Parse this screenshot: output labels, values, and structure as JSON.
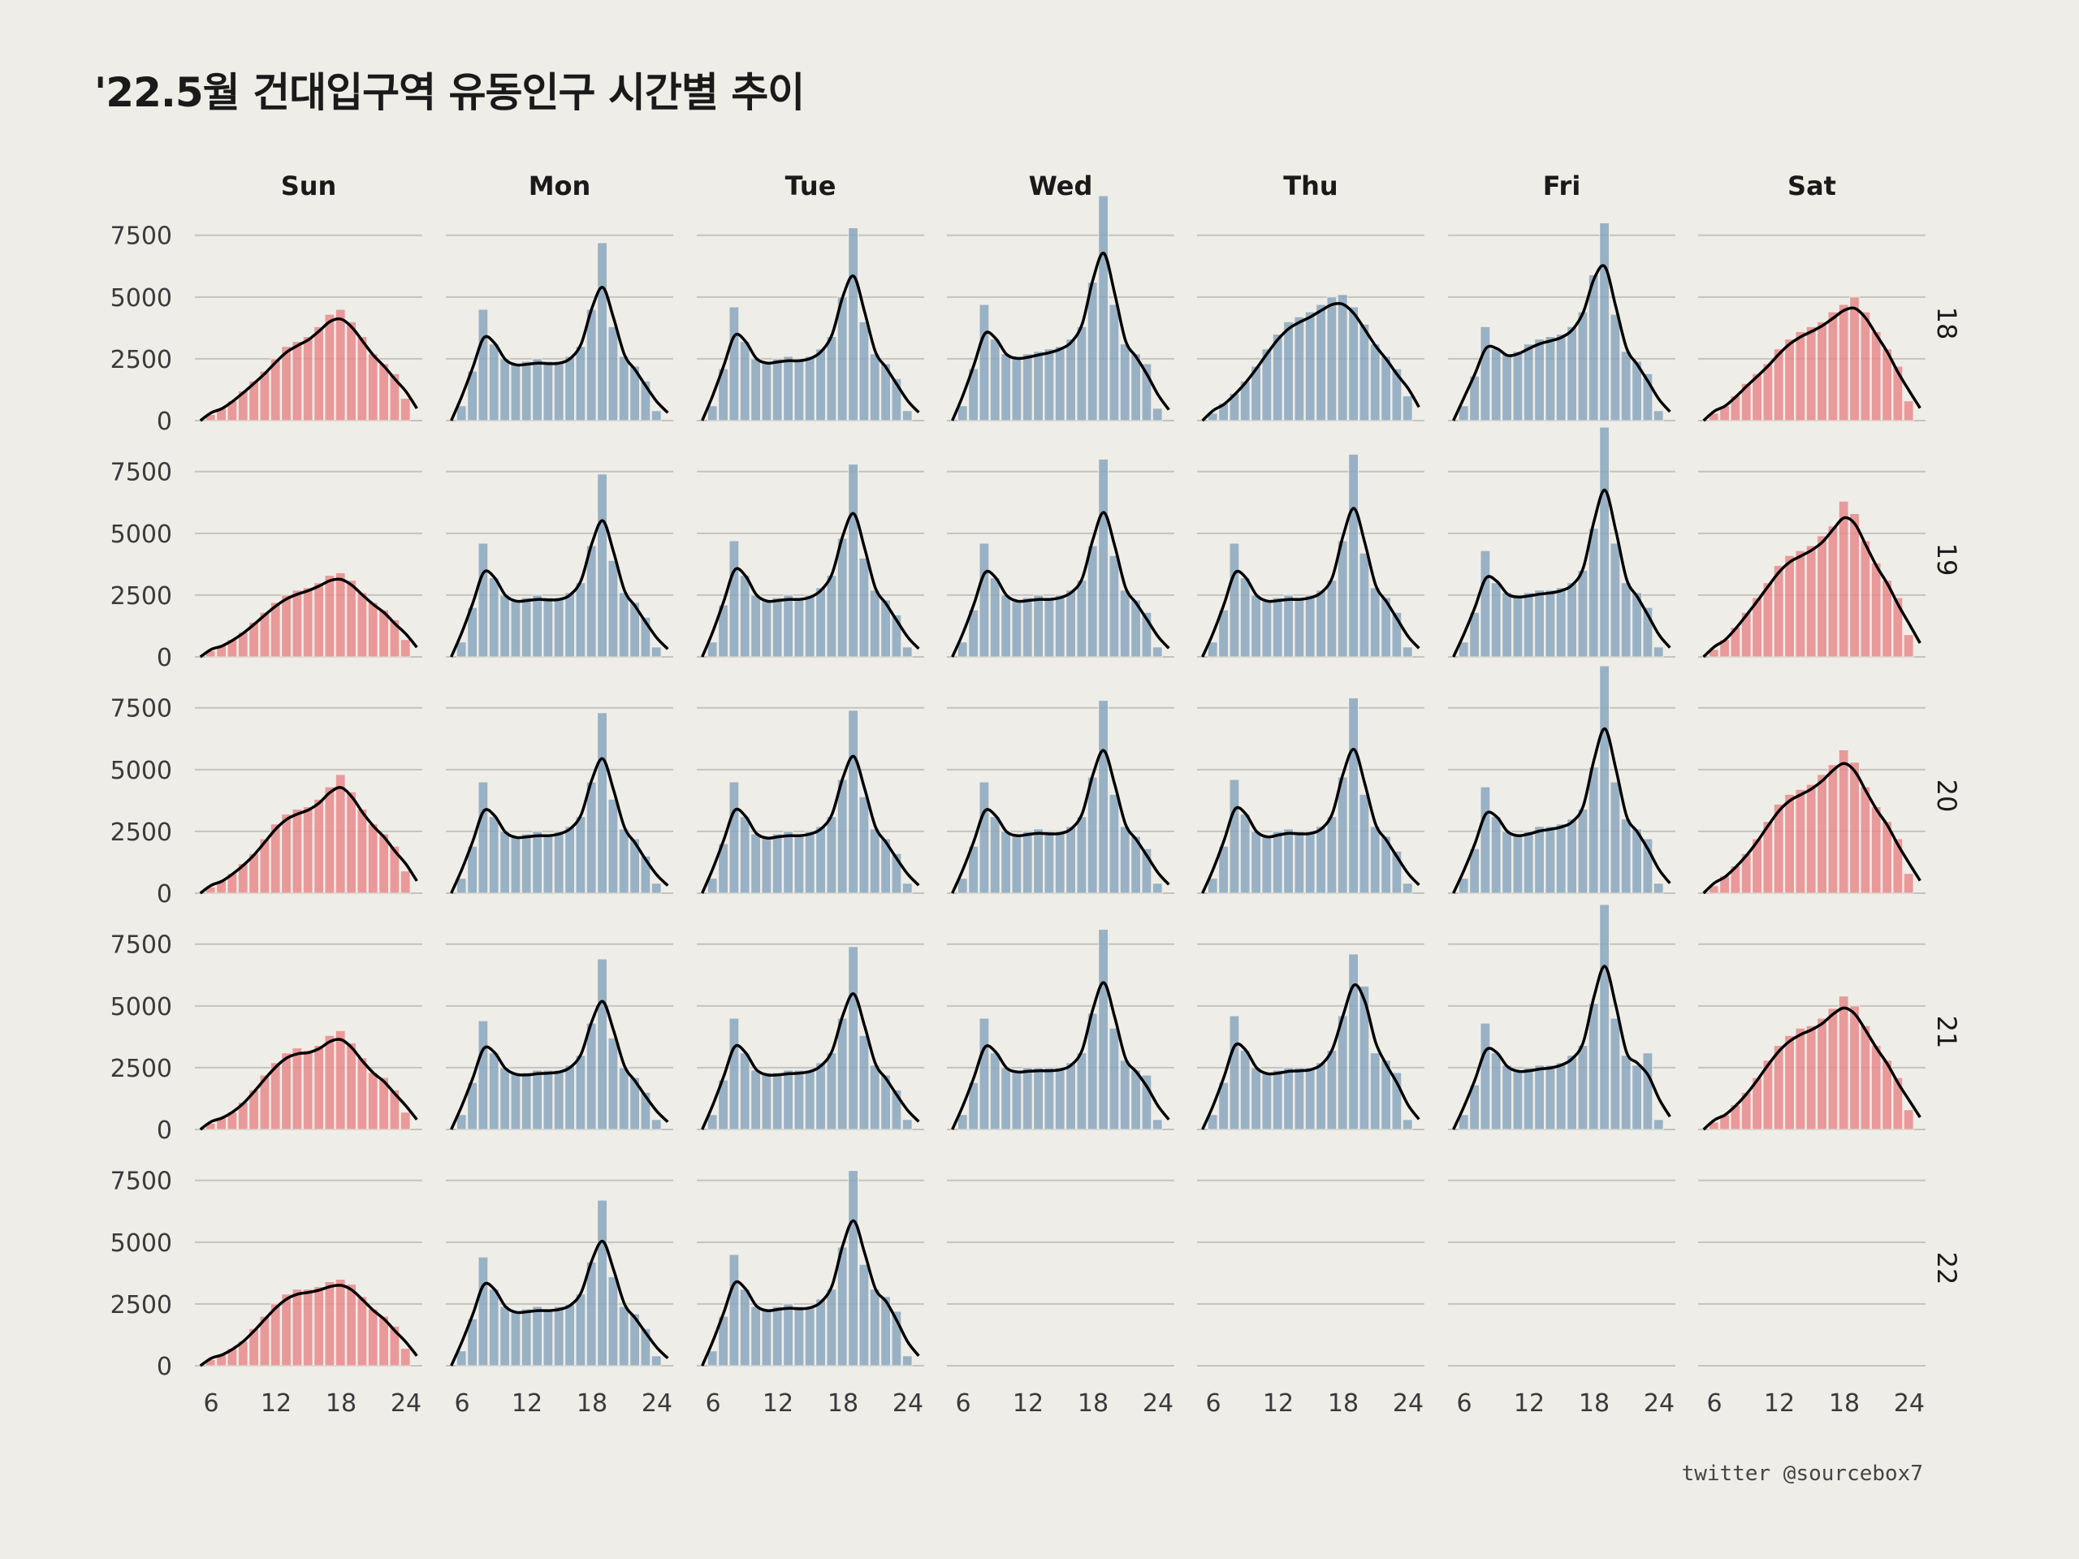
{
  "title": "'22.5월 건대입구역 유동인구 시간별 추이",
  "caption": "twitter @sourcebox7",
  "colors": {
    "weekend": "#e8898b",
    "weekday": "#8aa6bd",
    "background": "#efede7",
    "grid": "#c4c3be",
    "line": "#000000"
  },
  "chart_data": {
    "type": "bar",
    "subtype": "faceted histogram with density line",
    "columns": [
      "Sun",
      "Mon",
      "Tue",
      "Wed",
      "Thu",
      "Fri",
      "Sat"
    ],
    "rows": [
      "18",
      "19",
      "20",
      "21",
      "22"
    ],
    "weekend_columns": [
      "Sun",
      "Sat"
    ],
    "x": [
      6,
      7,
      8,
      9,
      10,
      11,
      12,
      13,
      14,
      15,
      16,
      17,
      18,
      19,
      20,
      21,
      22,
      23,
      24
    ],
    "xticks": [
      6,
      12,
      18,
      24
    ],
    "yticks": [
      0,
      2500,
      5000,
      7500
    ],
    "xlim": [
      4.5,
      25.5
    ],
    "ylim": [
      0,
      9200
    ],
    "panels": [
      {
        "row": "18",
        "col": "Sun",
        "values": [
          250,
          500,
          800,
          1200,
          1600,
          2000,
          2500,
          3000,
          3200,
          3400,
          3800,
          4300,
          4500,
          4000,
          3400,
          2700,
          2300,
          1900,
          900
        ]
      },
      {
        "row": "18",
        "col": "Mon",
        "values": [
          600,
          2000,
          4500,
          3100,
          2500,
          2300,
          2400,
          2500,
          2400,
          2400,
          2600,
          3000,
          4500,
          7200,
          3800,
          2600,
          2200,
          1600,
          400
        ]
      },
      {
        "row": "18",
        "col": "Tue",
        "values": [
          600,
          2100,
          4600,
          3200,
          2500,
          2400,
          2500,
          2600,
          2500,
          2600,
          2900,
          3400,
          5000,
          7800,
          4000,
          2700,
          2300,
          1700,
          400
        ]
      },
      {
        "row": "18",
        "col": "Wed",
        "values": [
          600,
          2100,
          4700,
          3300,
          2700,
          2600,
          2700,
          2800,
          2900,
          3000,
          3300,
          3800,
          5600,
          9100,
          4700,
          3100,
          2700,
          2300,
          500
        ]
      },
      {
        "row": "18",
        "col": "Thu",
        "values": [
          300,
          700,
          1100,
          1600,
          2200,
          2900,
          3500,
          4000,
          4200,
          4400,
          4700,
          5000,
          5100,
          4600,
          3900,
          3100,
          2600,
          2100,
          1000
        ]
      },
      {
        "row": "18",
        "col": "Fri",
        "values": [
          600,
          1800,
          3800,
          2900,
          2700,
          2800,
          3100,
          3300,
          3400,
          3500,
          3800,
          4400,
          5900,
          8000,
          4300,
          2800,
          2400,
          1900,
          400
        ]
      },
      {
        "row": "18",
        "col": "Sat",
        "values": [
          300,
          600,
          1000,
          1500,
          1900,
          2300,
          2900,
          3300,
          3600,
          3800,
          4000,
          4400,
          4700,
          5000,
          4400,
          3600,
          2900,
          2200,
          800
        ]
      },
      {
        "row": "19",
        "col": "Sun",
        "values": [
          250,
          450,
          700,
          1000,
          1400,
          1800,
          2200,
          2500,
          2700,
          2800,
          3000,
          3300,
          3400,
          3100,
          2600,
          2200,
          1900,
          1500,
          700
        ]
      },
      {
        "row": "19",
        "col": "Mon",
        "values": [
          600,
          2000,
          4600,
          3200,
          2500,
          2300,
          2400,
          2500,
          2400,
          2400,
          2600,
          3000,
          4500,
          7400,
          3900,
          2600,
          2200,
          1600,
          400
        ]
      },
      {
        "row": "19",
        "col": "Tue",
        "values": [
          600,
          2100,
          4700,
          3300,
          2500,
          2300,
          2400,
          2500,
          2400,
          2500,
          2800,
          3300,
          4800,
          7800,
          4000,
          2700,
          2300,
          1700,
          400
        ]
      },
      {
        "row": "19",
        "col": "Wed",
        "values": [
          600,
          1900,
          4600,
          3200,
          2500,
          2300,
          2400,
          2500,
          2400,
          2500,
          2700,
          3100,
          4500,
          8000,
          4100,
          2700,
          2300,
          1800,
          400
        ]
      },
      {
        "row": "19",
        "col": "Thu",
        "values": [
          600,
          1900,
          4600,
          3200,
          2500,
          2300,
          2400,
          2500,
          2400,
          2500,
          2700,
          3100,
          4700,
          8200,
          4200,
          2800,
          2400,
          1800,
          400
        ]
      },
      {
        "row": "19",
        "col": "Fri",
        "values": [
          600,
          1800,
          4300,
          3000,
          2600,
          2500,
          2600,
          2700,
          2700,
          2800,
          3000,
          3500,
          5200,
          9300,
          4600,
          3000,
          2600,
          2000,
          400
        ]
      },
      {
        "row": "19",
        "col": "Sat",
        "values": [
          300,
          700,
          1200,
          1800,
          2400,
          3000,
          3700,
          4100,
          4300,
          4500,
          4900,
          5300,
          6300,
          5800,
          4700,
          3800,
          3100,
          2400,
          900
        ]
      },
      {
        "row": "20",
        "col": "Sun",
        "values": [
          250,
          500,
          800,
          1200,
          1600,
          2200,
          2800,
          3200,
          3400,
          3500,
          3800,
          4300,
          4800,
          4100,
          3400,
          2800,
          2400,
          1900,
          900
        ]
      },
      {
        "row": "20",
        "col": "Mon",
        "values": [
          600,
          1900,
          4500,
          3100,
          2500,
          2300,
          2400,
          2500,
          2400,
          2500,
          2700,
          3100,
          4500,
          7300,
          3800,
          2600,
          2200,
          1500,
          400
        ]
      },
      {
        "row": "20",
        "col": "Tue",
        "values": [
          600,
          2000,
          4500,
          3100,
          2400,
          2300,
          2400,
          2500,
          2400,
          2500,
          2700,
          3100,
          4600,
          7400,
          3900,
          2600,
          2200,
          1600,
          400
        ]
      },
      {
        "row": "20",
        "col": "Wed",
        "values": [
          600,
          1900,
          4500,
          3100,
          2500,
          2400,
          2500,
          2600,
          2500,
          2500,
          2700,
          3100,
          4700,
          7800,
          4000,
          2700,
          2300,
          1800,
          400
        ]
      },
      {
        "row": "20",
        "col": "Thu",
        "values": [
          600,
          1900,
          4600,
          3200,
          2500,
          2300,
          2500,
          2600,
          2500,
          2500,
          2700,
          3100,
          4700,
          7900,
          4000,
          2700,
          2300,
          1700,
          400
        ]
      },
      {
        "row": "20",
        "col": "Fri",
        "values": [
          600,
          1800,
          4300,
          3100,
          2500,
          2400,
          2500,
          2700,
          2700,
          2800,
          3000,
          3400,
          5100,
          9200,
          4500,
          3000,
          2600,
          2200,
          400
        ]
      },
      {
        "row": "20",
        "col": "Sat",
        "values": [
          300,
          700,
          1100,
          1600,
          2200,
          2900,
          3600,
          4000,
          4200,
          4400,
          4800,
          5200,
          5800,
          5300,
          4300,
          3500,
          2900,
          2200,
          800
        ]
      },
      {
        "row": "21",
        "col": "Sun",
        "values": [
          250,
          500,
          700,
          1100,
          1600,
          2200,
          2700,
          3100,
          3300,
          3200,
          3400,
          3800,
          4000,
          3500,
          2900,
          2300,
          2100,
          1600,
          700
        ]
      },
      {
        "row": "21",
        "col": "Mon",
        "values": [
          600,
          1900,
          4400,
          3100,
          2500,
          2300,
          2300,
          2400,
          2400,
          2400,
          2600,
          3000,
          4300,
          6900,
          3700,
          2500,
          2100,
          1500,
          400
        ]
      },
      {
        "row": "21",
        "col": "Tue",
        "values": [
          600,
          2000,
          4500,
          3100,
          2400,
          2300,
          2300,
          2400,
          2400,
          2400,
          2700,
          3100,
          4500,
          7400,
          3800,
          2600,
          2200,
          1600,
          400
        ]
      },
      {
        "row": "21",
        "col": "Wed",
        "values": [
          600,
          1900,
          4500,
          3100,
          2500,
          2400,
          2500,
          2500,
          2500,
          2500,
          2700,
          3100,
          4700,
          8100,
          4100,
          2800,
          2400,
          2200,
          400
        ]
      },
      {
        "row": "21",
        "col": "Thu",
        "values": [
          600,
          1900,
          4600,
          3200,
          2500,
          2300,
          2400,
          2500,
          2500,
          2500,
          2700,
          3200,
          4600,
          7100,
          5800,
          3100,
          2800,
          2300,
          400
        ]
      },
      {
        "row": "21",
        "col": "Fri",
        "values": [
          600,
          1800,
          4300,
          3100,
          2600,
          2400,
          2500,
          2600,
          2600,
          2700,
          3000,
          3400,
          5100,
          9100,
          4500,
          3000,
          2600,
          3100,
          400
        ]
      },
      {
        "row": "21",
        "col": "Sat",
        "values": [
          300,
          600,
          1000,
          1500,
          2100,
          2800,
          3400,
          3800,
          4100,
          4200,
          4500,
          4900,
          5400,
          5000,
          4200,
          3400,
          2800,
          2100,
          800
        ]
      },
      {
        "row": "22",
        "col": "Sun",
        "values": [
          250,
          450,
          700,
          1000,
          1500,
          2000,
          2500,
          2900,
          3100,
          3100,
          3200,
          3400,
          3500,
          3300,
          2800,
          2300,
          2000,
          1600,
          700
        ]
      },
      {
        "row": "22",
        "col": "Mon",
        "values": [
          600,
          1900,
          4400,
          3100,
          2400,
          2200,
          2300,
          2400,
          2300,
          2400,
          2500,
          2900,
          4200,
          6700,
          3600,
          2400,
          2100,
          1500,
          400
        ]
      },
      {
        "row": "22",
        "col": "Tue",
        "values": [
          600,
          2000,
          4500,
          3100,
          2400,
          2300,
          2400,
          2500,
          2400,
          2400,
          2700,
          3100,
          4800,
          7900,
          4100,
          3100,
          2800,
          2200,
          400
        ]
      }
    ]
  }
}
